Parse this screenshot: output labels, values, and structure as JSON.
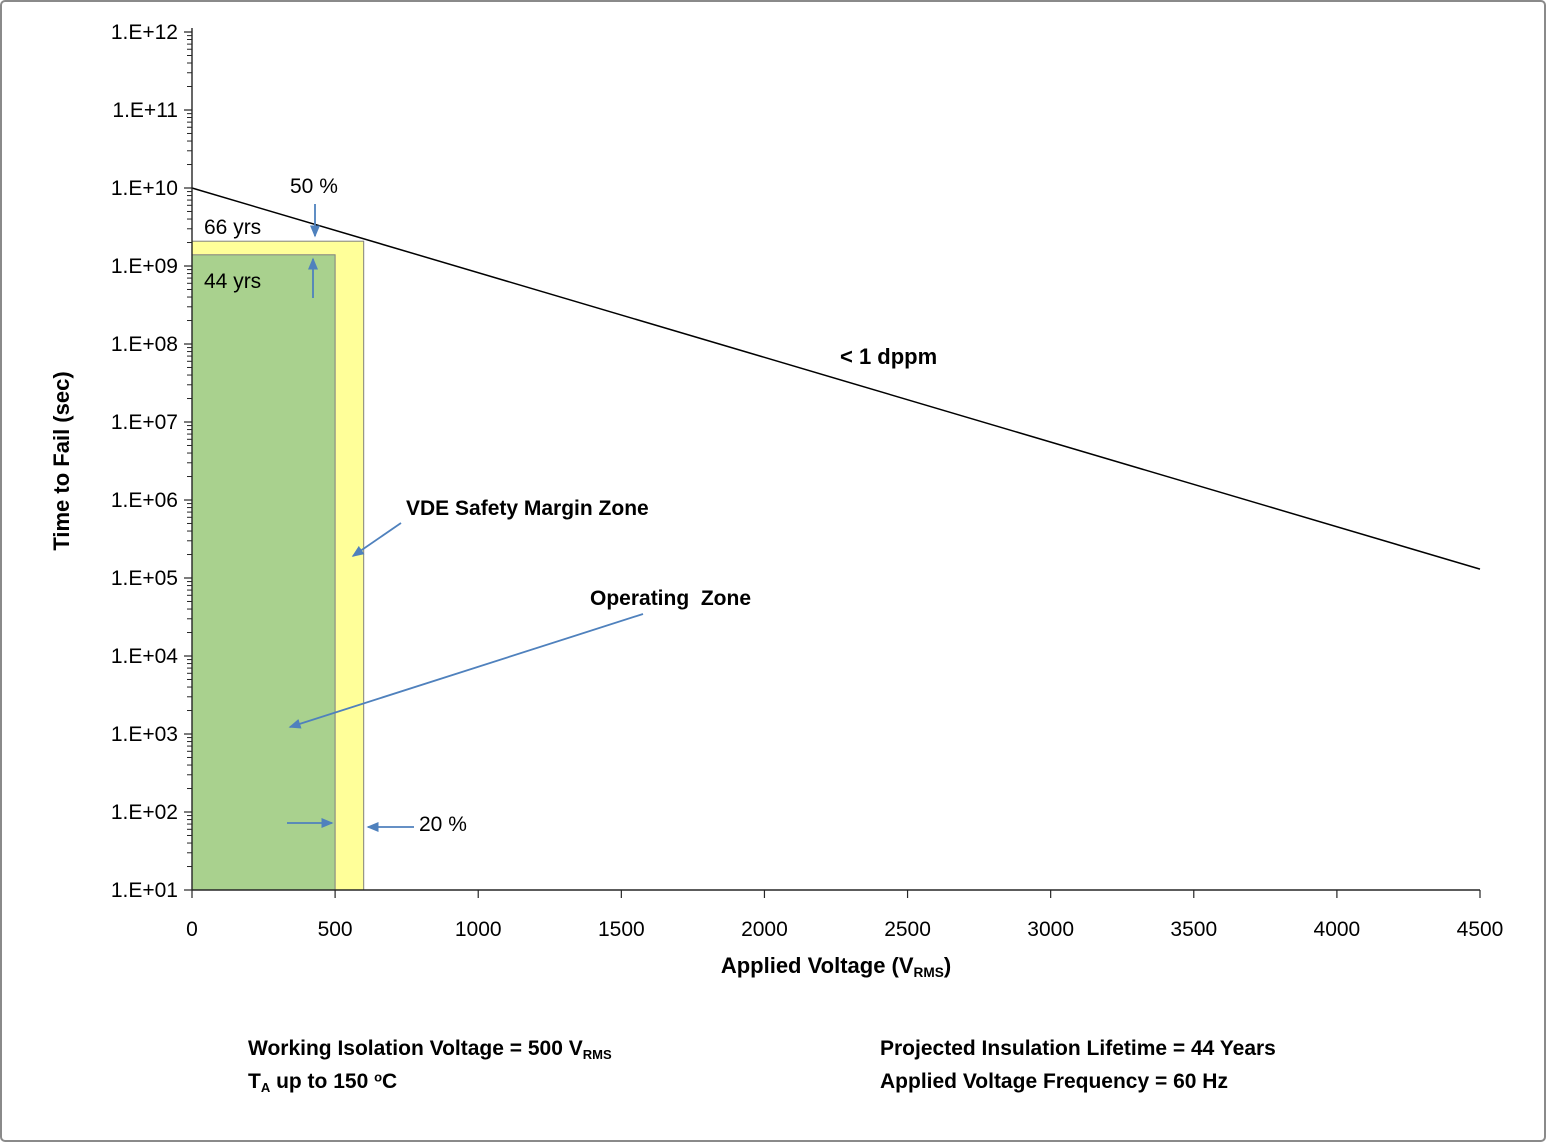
{
  "chart_data": {
    "type": "line",
    "title": "",
    "ylabel": "Time to Fail (sec)",
    "xlabel": "Applied Voltage (V_RMS)",
    "xlabel_parts": {
      "main": "Applied Voltage (V",
      "sub": "RMS",
      "end": ")"
    },
    "x_axis": {
      "min": 0,
      "max": 4500,
      "ticks": [
        0,
        500,
        1000,
        1500,
        2000,
        2500,
        3000,
        3500,
        4000,
        4500
      ]
    },
    "y_axis": {
      "scale": "log",
      "min_exp": 1,
      "max_exp": 12,
      "tick_labels": [
        "1.E+01",
        "1.E+02",
        "1.E+03",
        "1.E+04",
        "1.E+05",
        "1.E+06",
        "1.E+07",
        "1.E+08",
        "1.E+09",
        "1.E+10",
        "1.E+11",
        "1.E+12"
      ]
    },
    "grid": "off",
    "legend": "none",
    "series": [
      {
        "id": "tddb-1dppm",
        "name": "< 1 dppm failure line",
        "color": "#000000",
        "points": [
          [
            0,
            10000000000.0
          ],
          [
            4500,
            130000.0
          ]
        ]
      }
    ],
    "zones": [
      {
        "id": "vde-safety-margin",
        "name": "VDE Safety Margin Zone",
        "x_min": 0,
        "x_max": 600,
        "y_min": 10,
        "y_max": 2080000000.0,
        "y_max_label": "66 yrs",
        "fill": "#FFFF99",
        "stroke": "#7F7F7F"
      },
      {
        "id": "operating",
        "name": "Operating Zone",
        "x_min": 0,
        "x_max": 500,
        "y_min": 10,
        "y_max": 1390000000.0,
        "y_max_label": "44 yrs",
        "fill": "#A9D18E",
        "stroke": "#7F7F7F"
      }
    ],
    "annotations": {
      "pct50": "50 %",
      "yrs66": "66 yrs",
      "yrs44": "44 yrs",
      "vde_zone": "VDE Safety Margin Zone",
      "operating_zone": "Operating  Zone",
      "dppm": "< 1 dppm",
      "pct20": "20 %"
    },
    "colors": {
      "arrow": "#4F81BD",
      "green_zone": "#A9D18E",
      "yellow_zone": "#FFFF99",
      "line": "#000000"
    }
  },
  "footer": {
    "left_line1_main": "Working Isolation Voltage = 500 V",
    "left_line1_sub": "RMS",
    "left_line2_pre": "T",
    "left_line2_sub": "A",
    "left_line2_mid": " up to 150 ",
    "left_line2_sup": "o",
    "left_line2_end": "C",
    "right_line1": "Projected Insulation Lifetime = 44 Years",
    "right_line2": "Applied Voltage Frequency = 60 Hz"
  }
}
